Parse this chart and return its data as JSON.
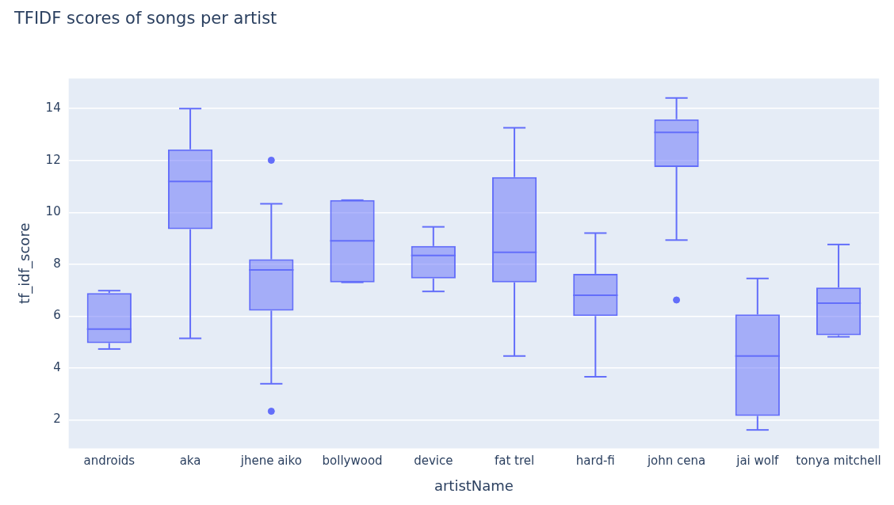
{
  "chart_data": {
    "type": "box",
    "title": "TFIDF scores of songs per artist",
    "xlabel": "artistName",
    "ylabel": "tf_idf_score",
    "categories": [
      "androids",
      "aka",
      "jhene aiko",
      "bollywood",
      "device",
      "fat trel",
      "hard-fi",
      "john cena",
      "jai wolf",
      "tonya mitchell"
    ],
    "color": "#636efa",
    "boxes": [
      {
        "low": 4.73,
        "q1": 4.96,
        "median": 5.5,
        "q3": 6.89,
        "high": 6.98
      },
      {
        "low": 5.14,
        "q1": 9.35,
        "median": 11.19,
        "q3": 12.43,
        "high": 14
      },
      {
        "low": 3.39,
        "q1": 6.21,
        "median": 7.78,
        "q3": 8.19,
        "high": 10.33,
        "outliers": [
          12.01,
          2.33
        ]
      },
      {
        "low": 7.3,
        "q1": 7.3,
        "median": 8.9,
        "q3": 10.47,
        "high": 10.47
      },
      {
        "low": 6.95,
        "q1": 7.45,
        "median": 8.34,
        "q3": 8.7,
        "high": 9.44
      },
      {
        "low": 4.46,
        "q1": 7.3,
        "median": 8.46,
        "q3": 11.36,
        "high": 13.26
      },
      {
        "low": 3.66,
        "q1": 6.0,
        "median": 6.8,
        "q3": 7.63,
        "high": 9.2
      },
      {
        "low": 8.93,
        "q1": 11.75,
        "median": 13.08,
        "q3": 13.59,
        "high": 14.41,
        "outliers": [
          6.62
        ]
      },
      {
        "low": 1.61,
        "q1": 2.15,
        "median": 4.46,
        "q3": 6.06,
        "high": 7.45
      },
      {
        "low": 5.2,
        "q1": 5.26,
        "median": 6.5,
        "q3": 7.1,
        "high": 8.76
      }
    ],
    "ylim": [
      0.9,
      15.16
    ],
    "yticks": [
      2,
      4,
      6,
      8,
      10,
      12,
      14
    ],
    "grid": "y"
  }
}
